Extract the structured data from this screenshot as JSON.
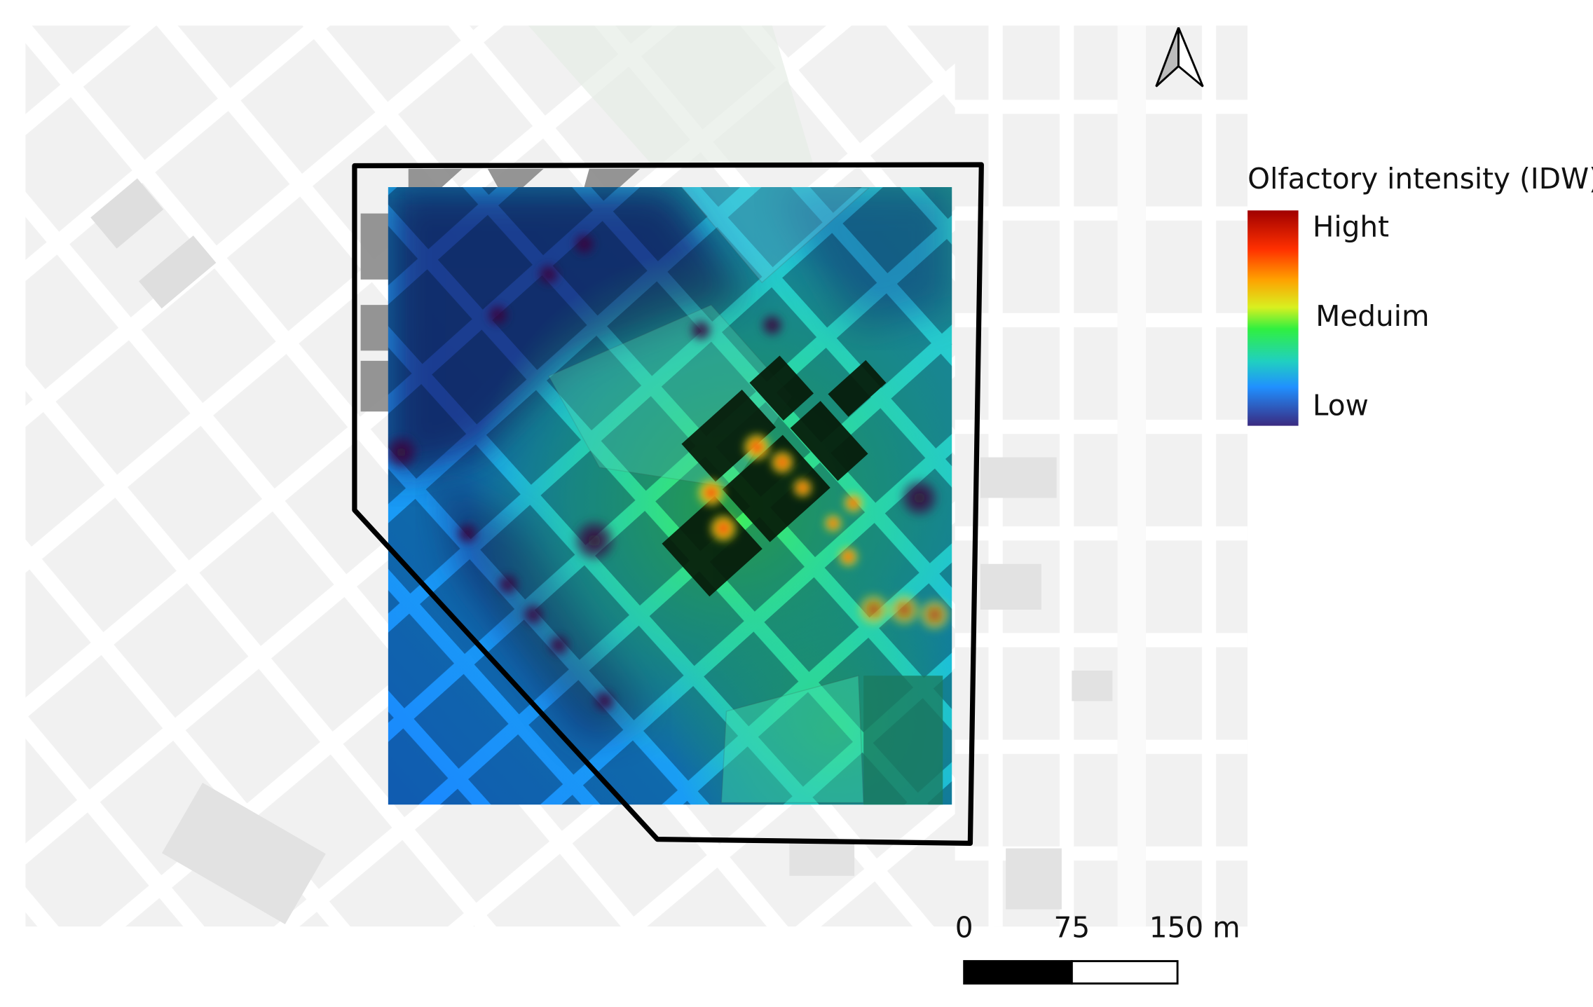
{
  "legend": {
    "title": "Olfactory intensity (IDW)",
    "labels": [
      "Hight",
      "Meduim",
      "Low"
    ]
  },
  "scale_bar": {
    "labels": [
      "0",
      "75",
      "150 m"
    ]
  }
}
